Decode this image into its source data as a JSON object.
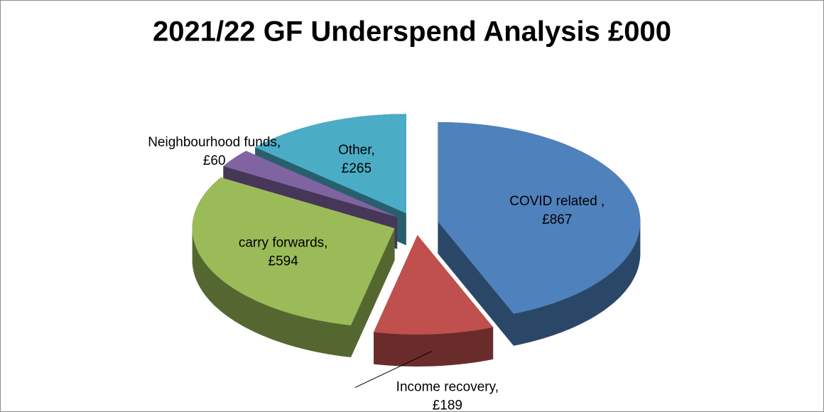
{
  "chart_data": {
    "type": "pie",
    "title": "2021/22 GF Underspend Analysis £000",
    "categories": [
      "COVID related ,",
      "Income recovery,",
      "carry forwards,",
      "Neighbourhood funds,",
      "Other,"
    ],
    "values": [
      867,
      189,
      594,
      60,
      265
    ],
    "value_labels": [
      "£867",
      "£189",
      "£594",
      "£60",
      "£265"
    ],
    "colors": [
      "#4f81bd",
      "#c0504d",
      "#9bbb59",
      "#8064a2",
      "#4bacc6"
    ]
  }
}
